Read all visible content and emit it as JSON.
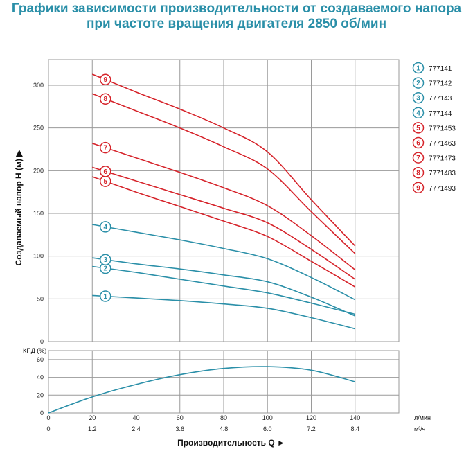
{
  "title_line1": "Графики зависимости производительности от создаваемого напора",
  "title_line2": "при частоте вращения двигателя 2850 об/мин",
  "colors": {
    "title": "#2a8fa8",
    "teal": "#2a8fa8",
    "red": "#d6232a",
    "grid": "#9a9a9a"
  },
  "chart_data": [
    {
      "type": "line",
      "ylabel": "Создаваемый напор Н (м) ▶",
      "ylim": [
        0,
        330
      ],
      "yticks": [
        0,
        50,
        100,
        150,
        200,
        250,
        300
      ],
      "xlim": [
        0,
        160
      ],
      "xgrid": [
        20,
        40,
        60,
        80,
        100,
        120,
        140
      ],
      "grid": true,
      "legend_position": "right",
      "series": [
        {
          "marker": "1",
          "name": "777141",
          "color": "#2a8fa8",
          "x": [
            20,
            40,
            60,
            80,
            100,
            120,
            140
          ],
          "y": [
            54,
            51,
            48,
            44,
            39,
            28,
            15
          ]
        },
        {
          "marker": "2",
          "name": "777142",
          "color": "#2a8fa8",
          "x": [
            20,
            40,
            60,
            80,
            100,
            120,
            140
          ],
          "y": [
            88,
            81,
            73,
            65,
            57,
            45,
            32
          ]
        },
        {
          "marker": "3",
          "name": "777143",
          "color": "#2a8fa8",
          "x": [
            20,
            40,
            60,
            80,
            100,
            120,
            140
          ],
          "y": [
            98,
            91,
            85,
            78,
            70,
            52,
            30
          ]
        },
        {
          "marker": "4",
          "name": "777144",
          "color": "#2a8fa8",
          "x": [
            20,
            40,
            60,
            80,
            100,
            120,
            140
          ],
          "y": [
            137,
            128,
            119,
            109,
            97,
            75,
            49
          ]
        },
        {
          "marker": "5",
          "name": "7771453",
          "color": "#d6232a",
          "x": [
            20,
            40,
            60,
            80,
            100,
            120,
            140
          ],
          "y": [
            193,
            175,
            158,
            141,
            123,
            94,
            64
          ]
        },
        {
          "marker": "6",
          "name": "7771463",
          "color": "#d6232a",
          "x": [
            20,
            40,
            60,
            80,
            100,
            120,
            140
          ],
          "y": [
            204,
            188,
            172,
            156,
            139,
            108,
            73
          ]
        },
        {
          "marker": "7",
          "name": "7771473",
          "color": "#d6232a",
          "x": [
            20,
            40,
            60,
            80,
            100,
            120,
            140
          ],
          "y": [
            232,
            215,
            198,
            180,
            159,
            124,
            84
          ]
        },
        {
          "marker": "8",
          "name": "7771483",
          "color": "#d6232a",
          "x": [
            20,
            40,
            60,
            80,
            100,
            120,
            140
          ],
          "y": [
            290,
            270,
            250,
            228,
            202,
            152,
            103
          ]
        },
        {
          "marker": "9",
          "name": "7771493",
          "color": "#d6232a",
          "x": [
            20,
            40,
            60,
            80,
            100,
            120,
            140
          ],
          "y": [
            313,
            292,
            272,
            250,
            222,
            166,
            112
          ]
        }
      ],
      "marker_x": 26
    },
    {
      "type": "line",
      "ylabel": "КПД (%)",
      "ylim": [
        0,
        70
      ],
      "yticks": [
        0,
        20,
        40,
        60
      ],
      "xlim": [
        0,
        160
      ],
      "x_ticks_lpm": [
        0,
        20,
        40,
        60,
        80,
        100,
        120,
        140
      ],
      "x_ticks_m3h": [
        "0",
        "1.2",
        "2.4",
        "3.6",
        "4.8",
        "6.0",
        "7.2",
        "8.4"
      ],
      "x_unit_lpm": "л/мин",
      "x_unit_m3h": "м³/ч",
      "xlabel": "Производительность Q ►",
      "grid": true,
      "series": [
        {
          "color": "#2a8fa8",
          "x": [
            0,
            20,
            40,
            60,
            80,
            100,
            120,
            140
          ],
          "y": [
            0,
            18,
            32,
            43,
            50,
            52,
            48,
            35
          ]
        }
      ]
    }
  ]
}
